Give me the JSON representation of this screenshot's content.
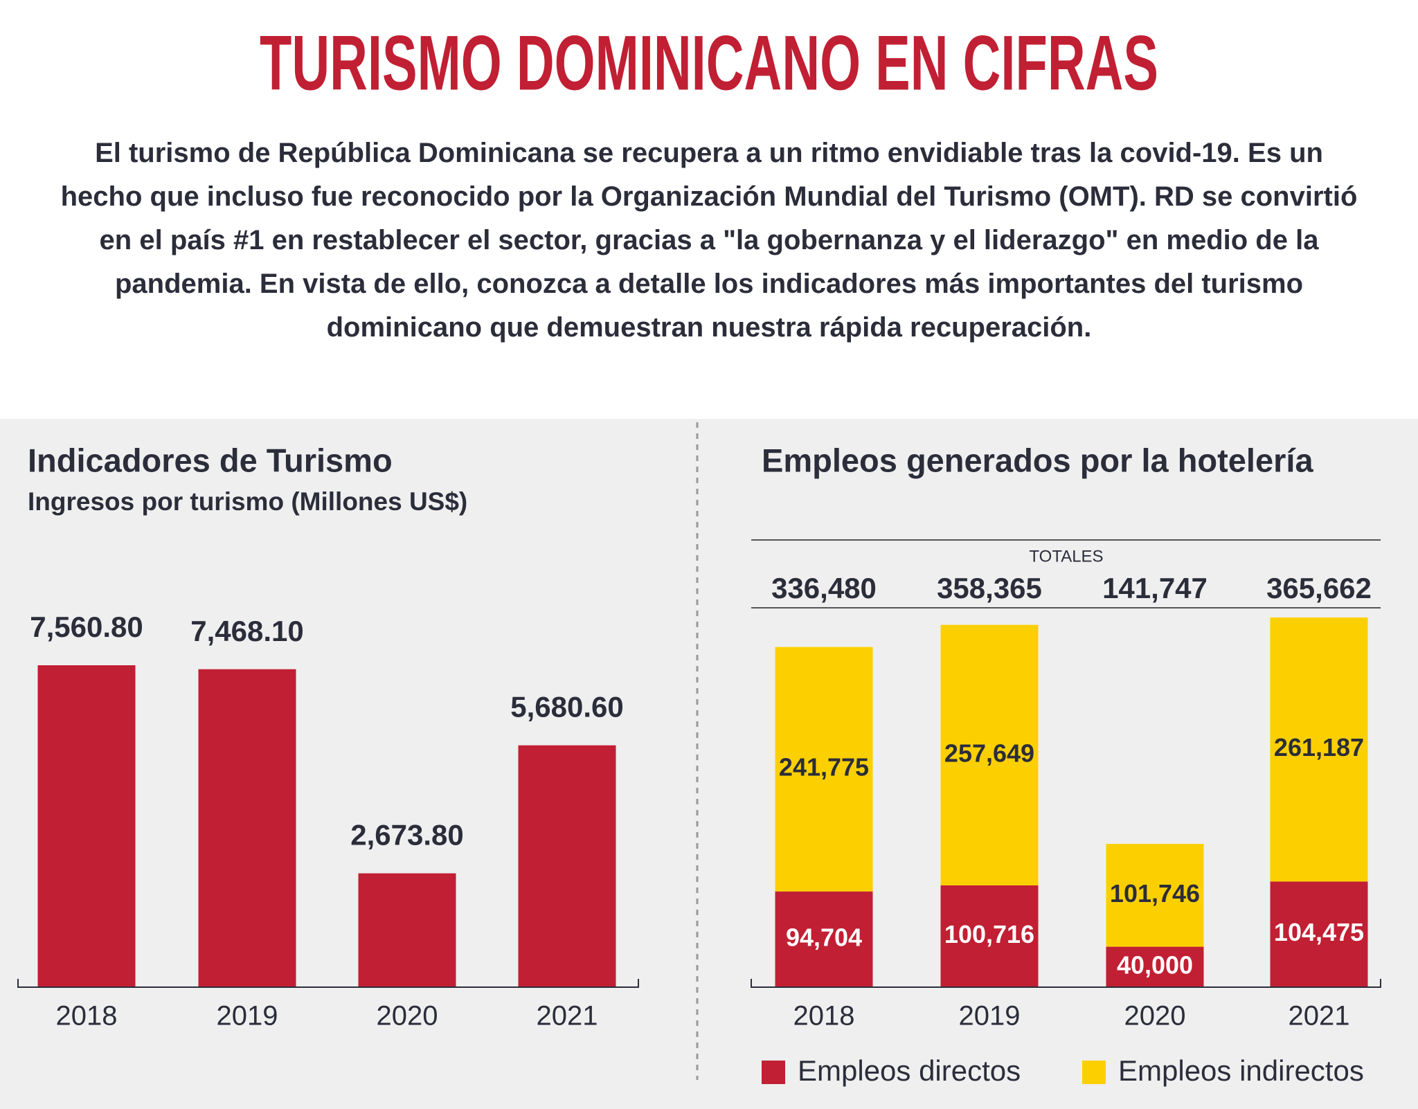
{
  "header": {
    "title": "TURISMO DOMINICANO EN CIFRAS",
    "intro": "El turismo de República Dominicana se recupera a un ritmo envidiable tras la covid-19. Es un hecho que incluso fue reconocido por la Organización Mundial del Turismo (OMT). RD se convirtió en el país #1 en restablecer el sector, gracias a \"la gobernanza y el liderazgo\" en medio de la pandemia. En vista de ello, conozca a detalle los indicadores más importantes del turismo dominicano que demuestran nuestra rápida recuperación."
  },
  "chart_data": [
    {
      "type": "bar",
      "title": "Indicadores de Turismo",
      "subtitle": "Ingresos por turismo (Millones US$)",
      "categories": [
        "2018",
        "2019",
        "2020",
        "2021"
      ],
      "values": [
        7560.8,
        7468.1,
        2673.8,
        5680.6
      ],
      "value_labels": [
        "7,560.80",
        "7,468.10",
        "2,673.80",
        "5,680.60"
      ],
      "color": "#c11f33"
    },
    {
      "type": "stacked_bar",
      "title": "Empleos generados por la hotelería",
      "categories": [
        "2018",
        "2019",
        "2020",
        "2021"
      ],
      "totals_title": "TOTALES",
      "totals": [
        336480,
        358365,
        141747,
        365662
      ],
      "totals_labels": [
        "336,480",
        "358,365",
        "141,747",
        "365,662"
      ],
      "series": [
        {
          "name": "Empleos directos",
          "color": "#c11f33",
          "values": [
            94704,
            100716,
            40000,
            104475
          ],
          "value_labels": [
            "94,704",
            "100,716",
            "40,000",
            "104,475"
          ]
        },
        {
          "name": "Empleos indirectos",
          "color": "#fcd000",
          "values": [
            241775,
            257649,
            101746,
            261187
          ],
          "value_labels": [
            "241,775",
            "257,649",
            "101,746",
            "261,187"
          ]
        }
      ]
    }
  ]
}
